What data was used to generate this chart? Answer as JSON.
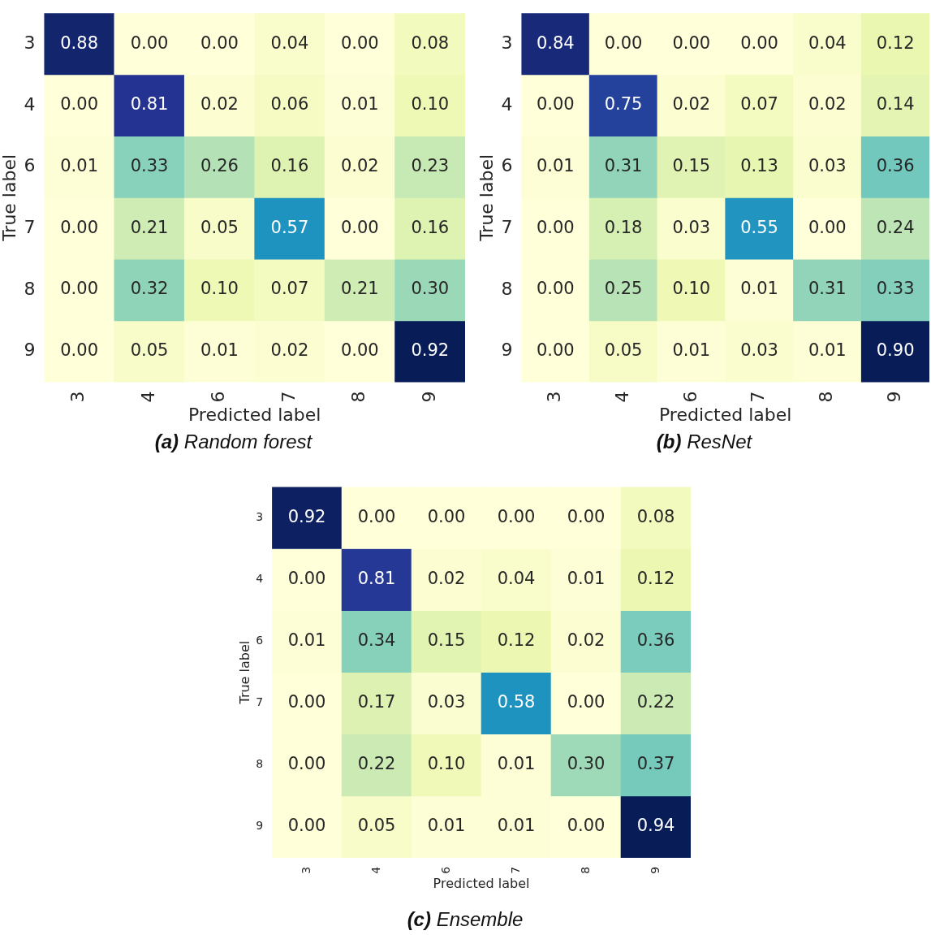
{
  "chart_data": [
    {
      "type": "heatmap",
      "title": "(a) Random forest",
      "xlabel": "Predicted label",
      "ylabel": "True label",
      "categories": [
        "3",
        "4",
        "6",
        "7",
        "8",
        "9"
      ],
      "y_categories": [
        "3",
        "4",
        "6",
        "7",
        "8",
        "9"
      ],
      "cells": [
        [
          0.88,
          0.0,
          0.0,
          0.04,
          0.0,
          0.08
        ],
        [
          0.0,
          0.81,
          0.02,
          0.06,
          0.01,
          0.1
        ],
        [
          0.01,
          0.33,
          0.26,
          0.16,
          0.02,
          0.23
        ],
        [
          0.0,
          0.21,
          0.05,
          0.57,
          0.0,
          0.16
        ],
        [
          0.0,
          0.32,
          0.1,
          0.07,
          0.21,
          0.3
        ],
        [
          0.0,
          0.05,
          0.01,
          0.02,
          0.0,
          0.92
        ]
      ],
      "cell_labels": [
        [
          "0.88",
          "0.00",
          "0.00",
          "0.04",
          "0.00",
          "0.08"
        ],
        [
          "0.00",
          "0.81",
          "0.02",
          "0.06",
          "0.01",
          "0.10"
        ],
        [
          "0.01",
          "0.33",
          "0.26",
          "0.16",
          "0.02",
          "0.23"
        ],
        [
          "0.00",
          "0.21",
          "0.05",
          "0.57",
          "0.00",
          "0.16"
        ],
        [
          "0.00",
          "0.32",
          "0.10",
          "0.07",
          "0.21",
          "0.30"
        ],
        [
          "0.00",
          "0.05",
          "0.01",
          "0.02",
          "0.00",
          "0.92"
        ]
      ]
    },
    {
      "type": "heatmap",
      "title": "(b) ResNet",
      "xlabel": "Predicted label",
      "ylabel": "True label",
      "categories": [
        "3",
        "4",
        "6",
        "7",
        "8",
        "9"
      ],
      "y_categories": [
        "3",
        "4",
        "6",
        "7",
        "8",
        "9"
      ],
      "cells": [
        [
          0.84,
          0.0,
          0.0,
          0.0,
          0.04,
          0.12
        ],
        [
          0.0,
          0.75,
          0.02,
          0.07,
          0.02,
          0.14
        ],
        [
          0.01,
          0.31,
          0.15,
          0.13,
          0.03,
          0.36
        ],
        [
          0.0,
          0.18,
          0.03,
          0.55,
          0.0,
          0.24
        ],
        [
          0.0,
          0.25,
          0.1,
          0.01,
          0.31,
          0.33
        ],
        [
          0.0,
          0.05,
          0.01,
          0.03,
          0.01,
          0.9
        ]
      ],
      "cell_labels": [
        [
          "0.84",
          "0.00",
          "0.00",
          "0.00",
          "0.04",
          "0.12"
        ],
        [
          "0.00",
          "0.75",
          "0.02",
          "0.07",
          "0.02",
          "0.14"
        ],
        [
          "0.01",
          "0.31",
          "0.15",
          "0.13",
          "0.03",
          "0.36"
        ],
        [
          "0.00",
          "0.18",
          "0.03",
          "0.55",
          "0.00",
          "0.24"
        ],
        [
          "0.00",
          "0.25",
          "0.10",
          "0.01",
          "0.31",
          "0.33"
        ],
        [
          "0.00",
          "0.05",
          "0.01",
          "0.03",
          "0.01",
          "0.90"
        ]
      ]
    },
    {
      "type": "heatmap",
      "title": "(c) Ensemble",
      "xlabel": "Predicted label",
      "ylabel": "True label",
      "categories": [
        "3",
        "4",
        "6",
        "7",
        "8",
        "9"
      ],
      "y_categories": [
        "3",
        "4",
        "6",
        "7",
        "8",
        "9"
      ],
      "cells": [
        [
          0.92,
          0.0,
          0.0,
          0.0,
          0.0,
          0.08
        ],
        [
          0.0,
          0.81,
          0.02,
          0.04,
          0.01,
          0.12
        ],
        [
          0.01,
          0.34,
          0.15,
          0.12,
          0.02,
          0.36
        ],
        [
          0.0,
          0.17,
          0.03,
          0.58,
          0.0,
          0.22
        ],
        [
          0.0,
          0.22,
          0.1,
          0.01,
          0.3,
          0.37
        ],
        [
          0.0,
          0.05,
          0.01,
          0.01,
          0.0,
          0.94
        ]
      ],
      "cell_labels": [
        [
          "0.92",
          "0.00",
          "0.00",
          "0.00",
          "0.00",
          "0.08"
        ],
        [
          "0.00",
          "0.81",
          "0.02",
          "0.04",
          "0.01",
          "0.12"
        ],
        [
          "0.01",
          "0.34",
          "0.15",
          "0.12",
          "0.02",
          "0.36"
        ],
        [
          "0.00",
          "0.17",
          "0.03",
          "0.58",
          "0.00",
          "0.22"
        ],
        [
          "0.00",
          "0.22",
          "0.10",
          "0.01",
          "0.30",
          "0.37"
        ],
        [
          "0.00",
          "0.05",
          "0.01",
          "0.01",
          "0.00",
          "0.94"
        ]
      ]
    }
  ]
}
